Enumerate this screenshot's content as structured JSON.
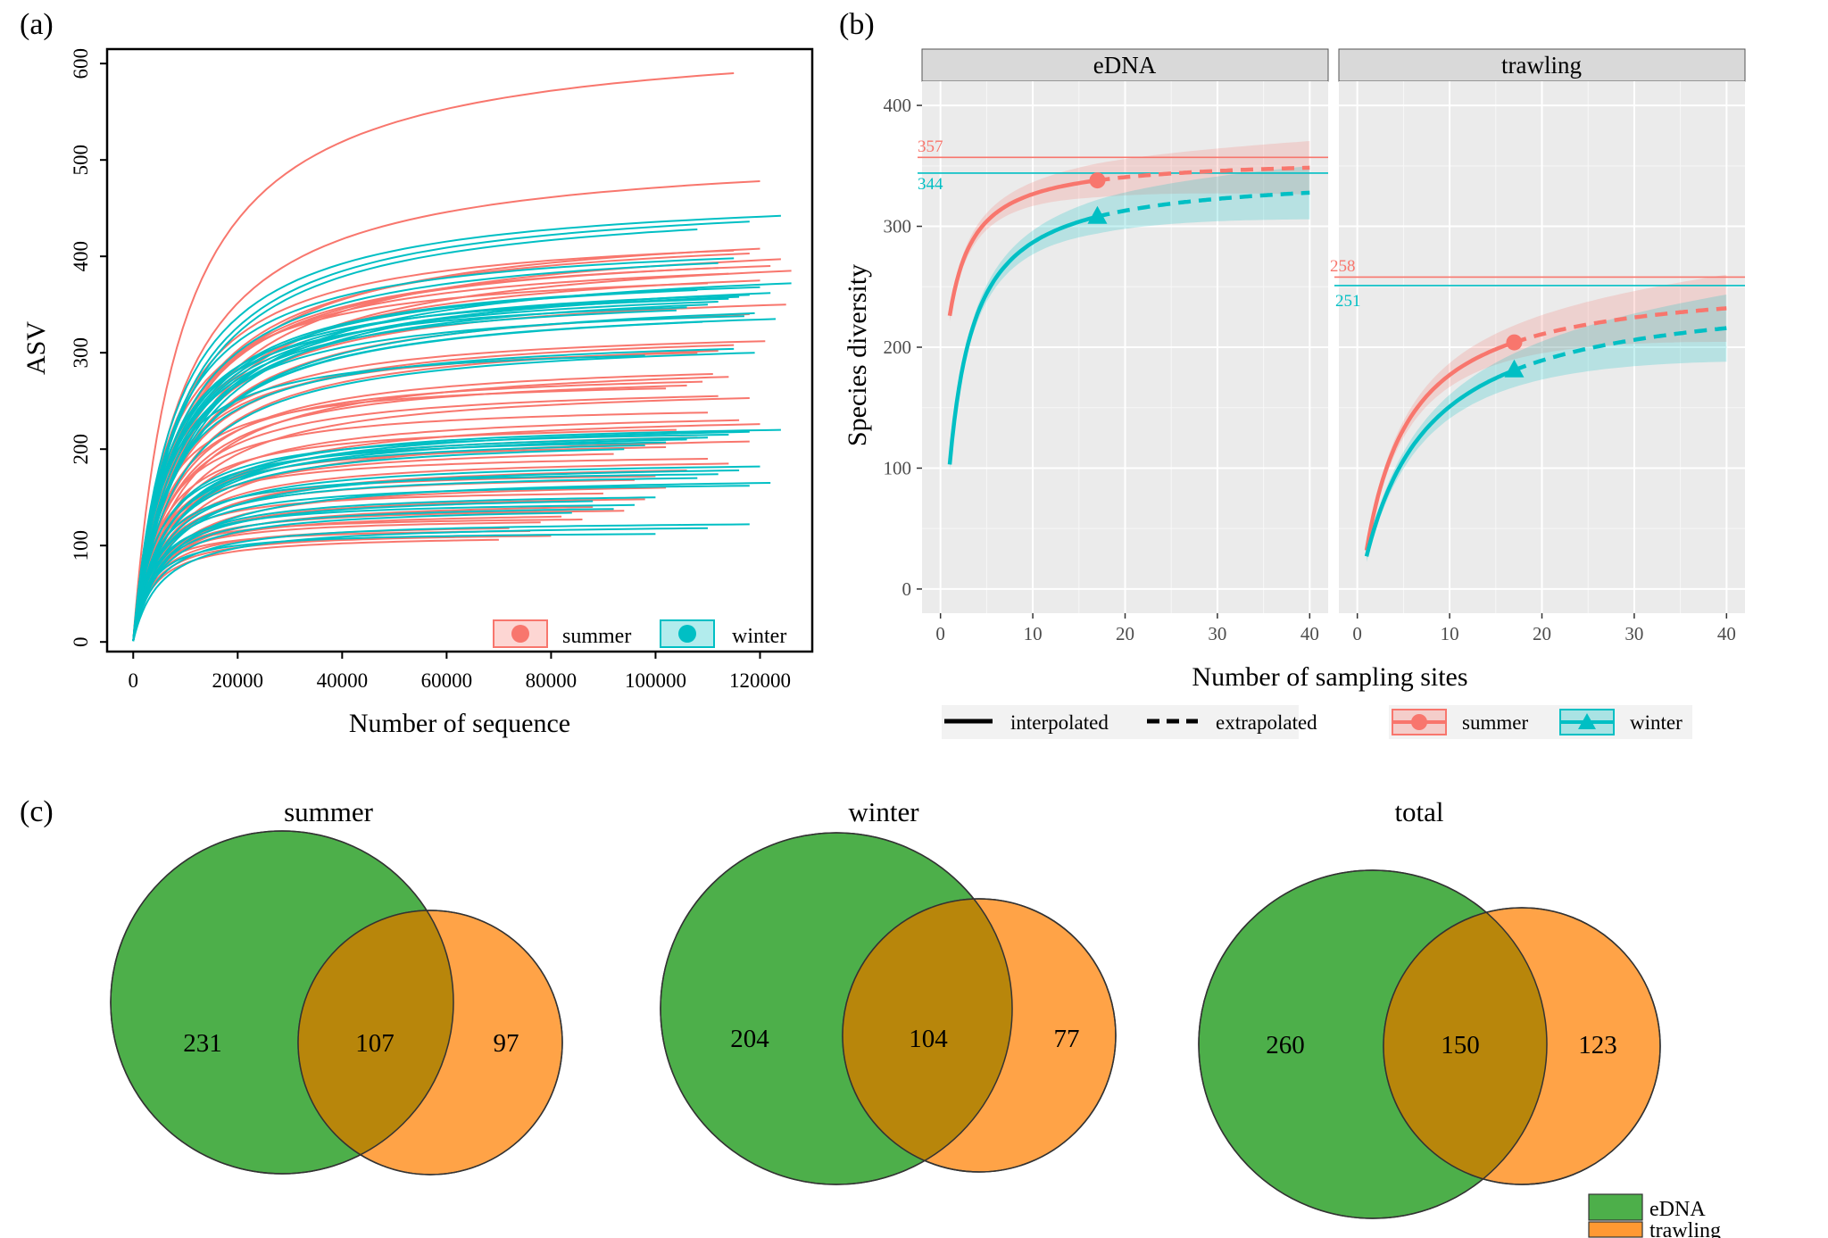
{
  "panel_labels": {
    "a": "(a)",
    "b": "(b)",
    "c": "(c)"
  },
  "colors": {
    "summer": "#F8766D",
    "winter": "#00BFC4",
    "eDNA": "#4DAF4A",
    "trawling": "#FF9933",
    "overlap": "#B8860B",
    "panel_bg": "#EBEBEB",
    "strip_bg": "#D9D9D9"
  },
  "chart_data": [
    {
      "type": "line",
      "panel": "a",
      "xlabel": "Number of sequence",
      "ylabel": "ASV",
      "xlim": [
        -5000,
        130000
      ],
      "ylim": [
        -10,
        615
      ],
      "xticks": [
        0,
        20000,
        40000,
        60000,
        80000,
        100000,
        120000
      ],
      "yticks": [
        0,
        100,
        200,
        300,
        400,
        500,
        600
      ],
      "legend": {
        "position": "bottom-right",
        "entries": [
          "summer",
          "winter"
        ]
      },
      "series": [
        {
          "name": "summer",
          "color": "#F8766D",
          "finals": [
            [
              115000,
              590
            ],
            [
              120000,
              478
            ],
            [
              120000,
              408
            ],
            [
              115000,
              406
            ],
            [
              118000,
              403
            ],
            [
              124000,
              397
            ],
            [
              122000,
              390
            ],
            [
              112000,
              388
            ],
            [
              126000,
              385
            ],
            [
              114000,
              382
            ],
            [
              120000,
              375
            ],
            [
              110000,
              372
            ],
            [
              125000,
              350
            ],
            [
              118000,
              340
            ],
            [
              121000,
              312
            ],
            [
              115000,
              308
            ],
            [
              112000,
              302
            ],
            [
              108000,
              300
            ],
            [
              111000,
              278
            ],
            [
              114000,
              275
            ],
            [
              109000,
              270
            ],
            [
              106000,
              266
            ],
            [
              102000,
              263
            ],
            [
              112000,
              255
            ],
            [
              118000,
              253
            ],
            [
              110000,
              238
            ],
            [
              116000,
              230
            ],
            [
              120000,
              226
            ],
            [
              104000,
              220
            ],
            [
              108000,
              212
            ],
            [
              118000,
              208
            ],
            [
              102000,
              202
            ],
            [
              92000,
              195
            ],
            [
              110000,
              190
            ],
            [
              114000,
              185
            ],
            [
              106000,
              178
            ],
            [
              100000,
              172
            ],
            [
              96000,
              168
            ],
            [
              102000,
              160
            ],
            [
              90000,
              154
            ],
            [
              98000,
              148
            ],
            [
              88000,
              140
            ],
            [
              94000,
              136
            ],
            [
              82000,
              130
            ],
            [
              86000,
              127
            ],
            [
              78000,
              124
            ],
            [
              72000,
              118
            ],
            [
              76000,
              115
            ],
            [
              80000,
              110
            ],
            [
              70000,
              106
            ]
          ]
        },
        {
          "name": "winter",
          "color": "#00BFC4",
          "finals": [
            [
              124000,
              442
            ],
            [
              118000,
              436
            ],
            [
              108000,
              428
            ],
            [
              115000,
              398
            ],
            [
              112000,
              393
            ],
            [
              126000,
              372
            ],
            [
              120000,
              368
            ],
            [
              108000,
              365
            ],
            [
              122000,
              362
            ],
            [
              118000,
              360
            ],
            [
              116000,
              358
            ],
            [
              114000,
              356
            ],
            [
              112000,
              353
            ],
            [
              110000,
              350
            ],
            [
              106000,
              347
            ],
            [
              104000,
              344
            ],
            [
              119000,
              341
            ],
            [
              117000,
              338
            ],
            [
              123000,
              335
            ],
            [
              109000,
              332
            ],
            [
              115000,
              304
            ],
            [
              119000,
              300
            ],
            [
              98000,
              297
            ],
            [
              124000,
              220
            ],
            [
              118000,
              218
            ],
            [
              114000,
              215
            ],
            [
              110000,
              212
            ],
            [
              106000,
              210
            ],
            [
              102000,
              207
            ],
            [
              98000,
              204
            ],
            [
              94000,
              200
            ],
            [
              120000,
              182
            ],
            [
              116000,
              178
            ],
            [
              112000,
              174
            ],
            [
              108000,
              170
            ],
            [
              122000,
              165
            ],
            [
              118000,
              162
            ],
            [
              100000,
              150
            ],
            [
              88000,
              146
            ],
            [
              96000,
              142
            ],
            [
              92000,
              138
            ],
            [
              84000,
              134
            ],
            [
              118000,
              122
            ],
            [
              110000,
              118
            ],
            [
              100000,
              112
            ]
          ]
        }
      ]
    },
    {
      "type": "line",
      "panel": "b",
      "xlabel": "Number of sampling sites",
      "ylabel": "Species diversity",
      "xlim": [
        -2,
        42
      ],
      "ylim": [
        -20,
        420
      ],
      "xticks": [
        0,
        10,
        20,
        30,
        40
      ],
      "yticks": [
        0,
        100,
        200,
        300,
        400
      ],
      "facets": [
        {
          "strip": "eDNA",
          "summer": {
            "y1": 226,
            "obs": [
              17,
              338
            ],
            "asymptote": 357
          },
          "winter": {
            "y1": 103,
            "obs": [
              17,
              308
            ],
            "asymptote": 344
          }
        },
        {
          "strip": "trawling",
          "summer": {
            "y1": 32,
            "obs": [
              17,
              204
            ],
            "asymptote": 258
          },
          "winter": {
            "y1": 27,
            "obs": [
              17,
              181
            ],
            "asymptote": 251
          }
        }
      ],
      "asymptote_labels": {
        "eDNA_summer": "357",
        "eDNA_winter": "344",
        "trawling_summer": "258",
        "trawling_winter": "251"
      },
      "legend": {
        "position": "bottom",
        "linetype_entries": [
          "interpolated",
          "extrapolated"
        ],
        "color_entries": [
          "summer",
          "winter"
        ]
      }
    },
    {
      "type": "venn",
      "panel": "c",
      "sets": [
        "eDNA",
        "trawling"
      ],
      "diagrams": [
        {
          "title": "summer",
          "eDNA_only": "231",
          "both": "107",
          "trawling_only": "97"
        },
        {
          "title": "winter",
          "eDNA_only": "204",
          "both": "104",
          "trawling_only": "77"
        },
        {
          "title": "total",
          "eDNA_only": "260",
          "both": "150",
          "trawling_only": "123"
        }
      ],
      "legend": {
        "position": "bottom-right",
        "entries": [
          "eDNA",
          "trawling"
        ]
      }
    }
  ]
}
